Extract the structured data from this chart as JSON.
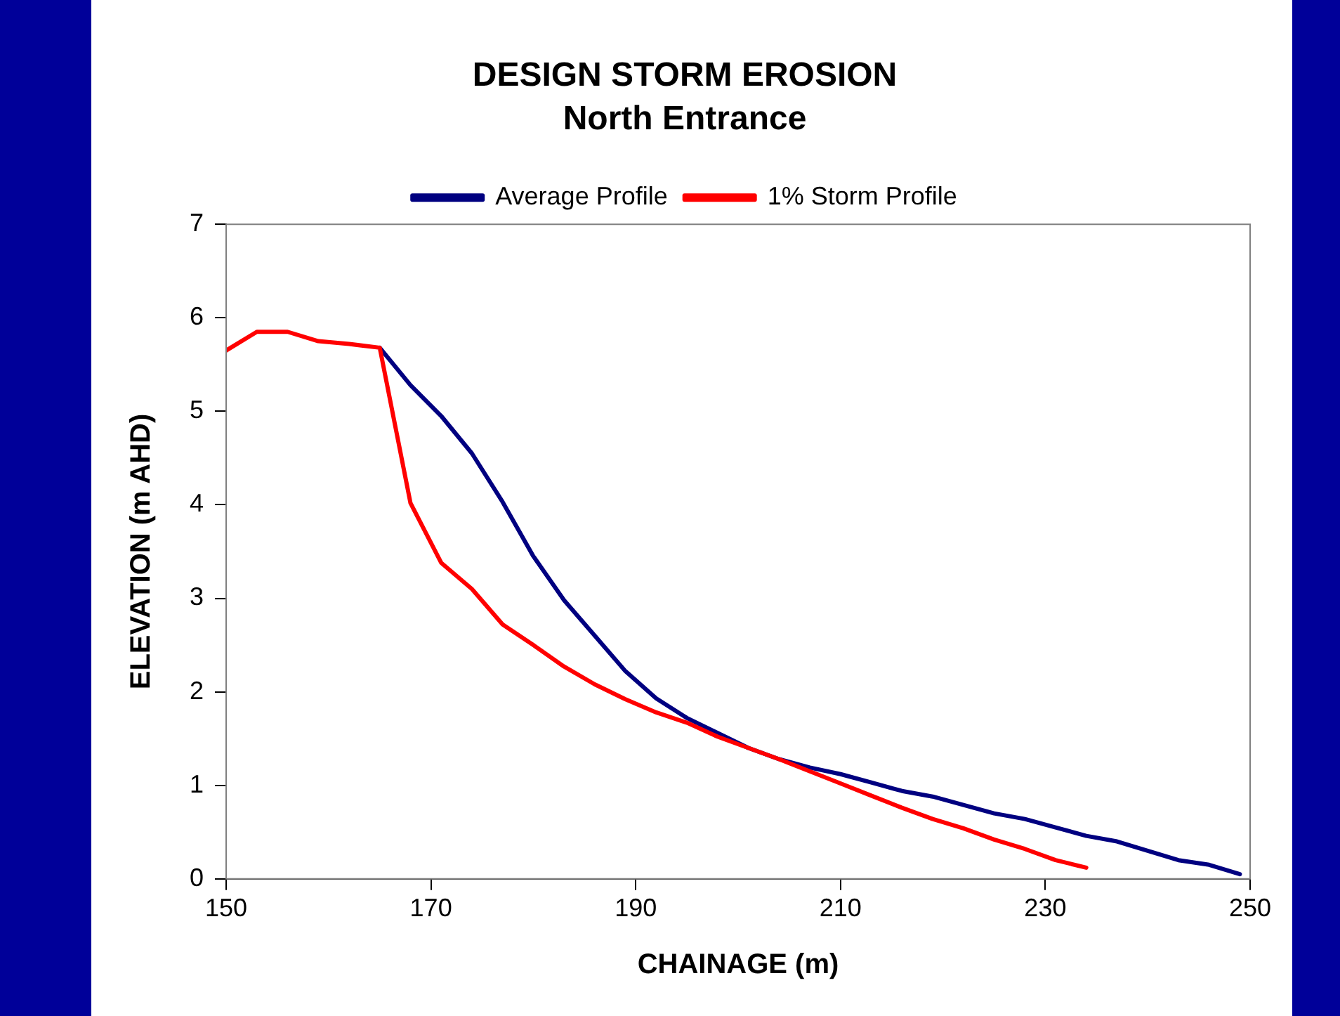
{
  "chart_data": {
    "type": "line",
    "title": "DESIGN STORM EROSION",
    "subtitle": "North Entrance",
    "xlabel": "CHAINAGE (m)",
    "ylabel": "ELEVATION (m AHD)",
    "xlim": [
      150,
      250
    ],
    "xticks": [
      150,
      170,
      190,
      210,
      230,
      250
    ],
    "ylim": [
      0,
      7
    ],
    "yticks": [
      0,
      1,
      2,
      3,
      4,
      5,
      6,
      7
    ],
    "grid": false,
    "legend": "top",
    "marker": "none",
    "line_style": "solid",
    "series": [
      {
        "name": "Average Profile",
        "color": "#000080",
        "x": [
          165,
          168,
          171,
          174,
          177,
          180,
          183,
          186,
          189,
          192,
          195,
          198,
          201,
          204,
          207,
          210,
          213,
          216,
          219,
          222,
          225,
          228,
          231,
          234,
          237,
          240,
          243,
          246,
          249
        ],
        "values": [
          5.68,
          5.28,
          4.95,
          4.55,
          4.03,
          3.45,
          2.98,
          2.6,
          2.22,
          1.93,
          1.72,
          1.56,
          1.4,
          1.28,
          1.19,
          1.12,
          1.03,
          0.94,
          0.88,
          0.79,
          0.7,
          0.64,
          0.55,
          0.46,
          0.4,
          0.3,
          0.2,
          0.15,
          0.05
        ]
      },
      {
        "name": "1% Storm Profile",
        "color": "#ff0000",
        "x": [
          150,
          153,
          156,
          159,
          162,
          165,
          168,
          171,
          174,
          177,
          180,
          183,
          186,
          189,
          192,
          195,
          198,
          201,
          204,
          207,
          210,
          213,
          216,
          219,
          222,
          225,
          228,
          231,
          234
        ],
        "values": [
          5.65,
          5.85,
          5.85,
          5.75,
          5.72,
          5.68,
          4.02,
          3.38,
          3.1,
          2.72,
          2.5,
          2.27,
          2.08,
          1.92,
          1.78,
          1.67,
          1.52,
          1.4,
          1.28,
          1.15,
          1.02,
          0.89,
          0.76,
          0.64,
          0.54,
          0.42,
          0.32,
          0.2,
          0.12
        ]
      }
    ]
  }
}
